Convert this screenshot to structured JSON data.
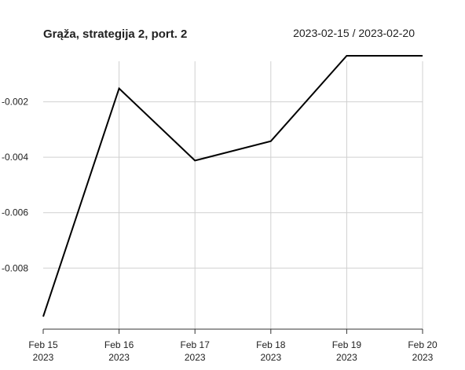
{
  "chart_data": {
    "type": "line",
    "title": "Grąža, strategija 2, port. 2",
    "date_range": "2023-02-15 / 2023-02-20",
    "x": [
      "2023-02-15",
      "2023-02-16",
      "2023-02-17",
      "2023-02-18",
      "2023-02-19",
      "2023-02-20"
    ],
    "x_tick_labels": [
      {
        "month_day": "Feb 15",
        "year": "2023"
      },
      {
        "month_day": "Feb 16",
        "year": "2023"
      },
      {
        "month_day": "Feb 17",
        "year": "2023"
      },
      {
        "month_day": "Feb 18",
        "year": "2023"
      },
      {
        "month_day": "Feb 19",
        "year": "2023"
      },
      {
        "month_day": "Feb 20",
        "year": "2023"
      }
    ],
    "series": [
      {
        "values": [
          -0.00975,
          -0.00152,
          -0.00412,
          -0.00342,
          -0.00034,
          -0.00034
        ],
        "color": "#000000"
      }
    ],
    "y_ticks": [
      -0.002,
      -0.004,
      -0.006,
      -0.008
    ],
    "y_tick_labels": [
      "-0.002",
      "-0.004",
      "-0.006",
      "-0.008"
    ],
    "ylim": [
      -0.00975,
      -0.00034
    ],
    "grid": true,
    "xlabel": "",
    "ylabel": ""
  }
}
